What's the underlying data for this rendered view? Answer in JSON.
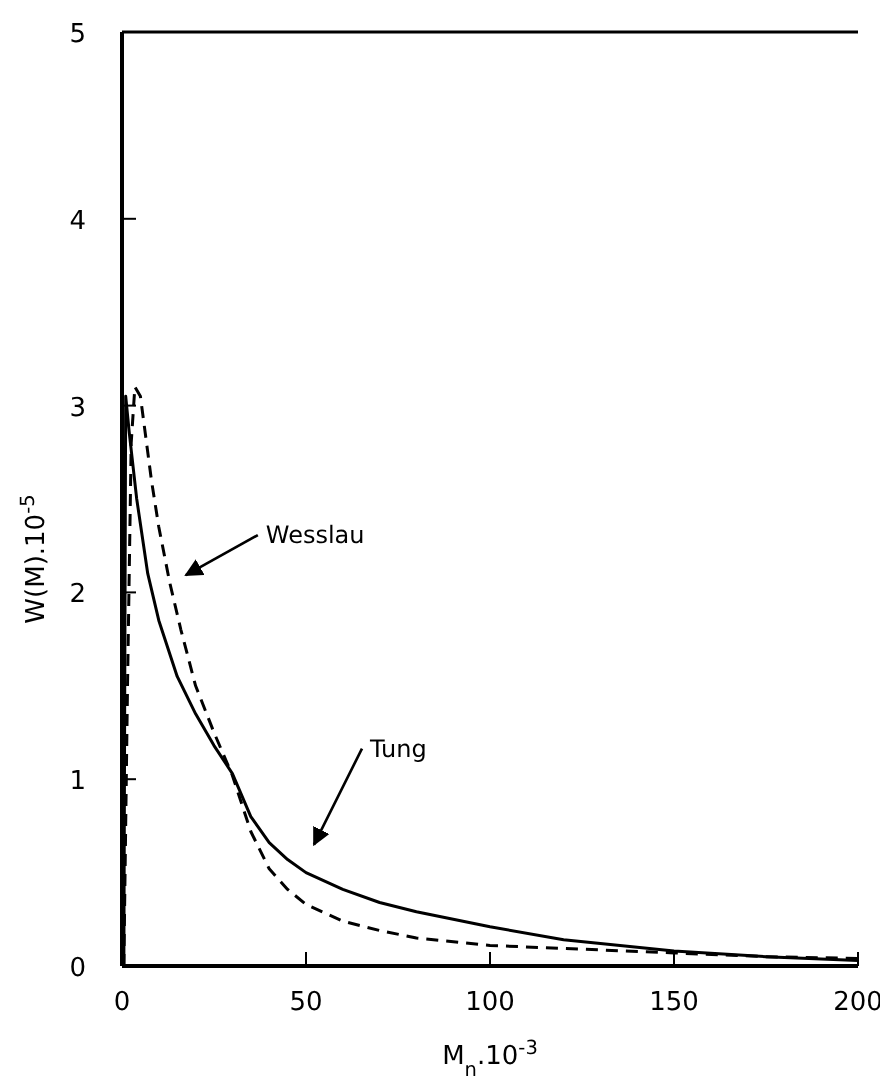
{
  "chart_data": {
    "type": "line",
    "xlabel": "M$_{n}$.10$^{-3}$",
    "ylabel": "W(M).10$^{-5}$",
    "xlim": [
      0,
      200
    ],
    "ylim": [
      0,
      5
    ],
    "xticks": [
      0,
      50,
      100,
      150,
      200
    ],
    "yticks": [
      0,
      1,
      2,
      3,
      4,
      5
    ],
    "grid": false,
    "marker": "none",
    "series": [
      {
        "color": "#000000",
        "line_style": "solid",
        "x": [
          0.5,
          1,
          2,
          4,
          7,
          10,
          15,
          20,
          25,
          30,
          35,
          40,
          45,
          50,
          60,
          70,
          80,
          100,
          120,
          150,
          175,
          200
        ],
        "values": [
          0,
          3.05,
          2.85,
          2.5,
          2.1,
          1.85,
          1.55,
          1.35,
          1.18,
          1.03,
          0.8,
          0.66,
          0.57,
          0.5,
          0.41,
          0.34,
          0.29,
          0.21,
          0.14,
          0.08,
          0.05,
          0.03
        ]
      },
      {
        "color": "#000000",
        "line_style": "dashed",
        "x": [
          0.5,
          1.5,
          2.5,
          3.5,
          5,
          6,
          8,
          10,
          13,
          16,
          20,
          25,
          30,
          35,
          40,
          45,
          50,
          60,
          70,
          80,
          100,
          125,
          150,
          175,
          200
        ],
        "values": [
          0,
          1.5,
          2.8,
          3.1,
          3.05,
          2.9,
          2.6,
          2.35,
          2.05,
          1.8,
          1.5,
          1.25,
          1.02,
          0.72,
          0.52,
          0.41,
          0.33,
          0.24,
          0.19,
          0.15,
          0.11,
          0.09,
          0.07,
          0.05,
          0.04
        ]
      }
    ],
    "annotations": [
      "Wesslau",
      "Tung"
    ]
  }
}
